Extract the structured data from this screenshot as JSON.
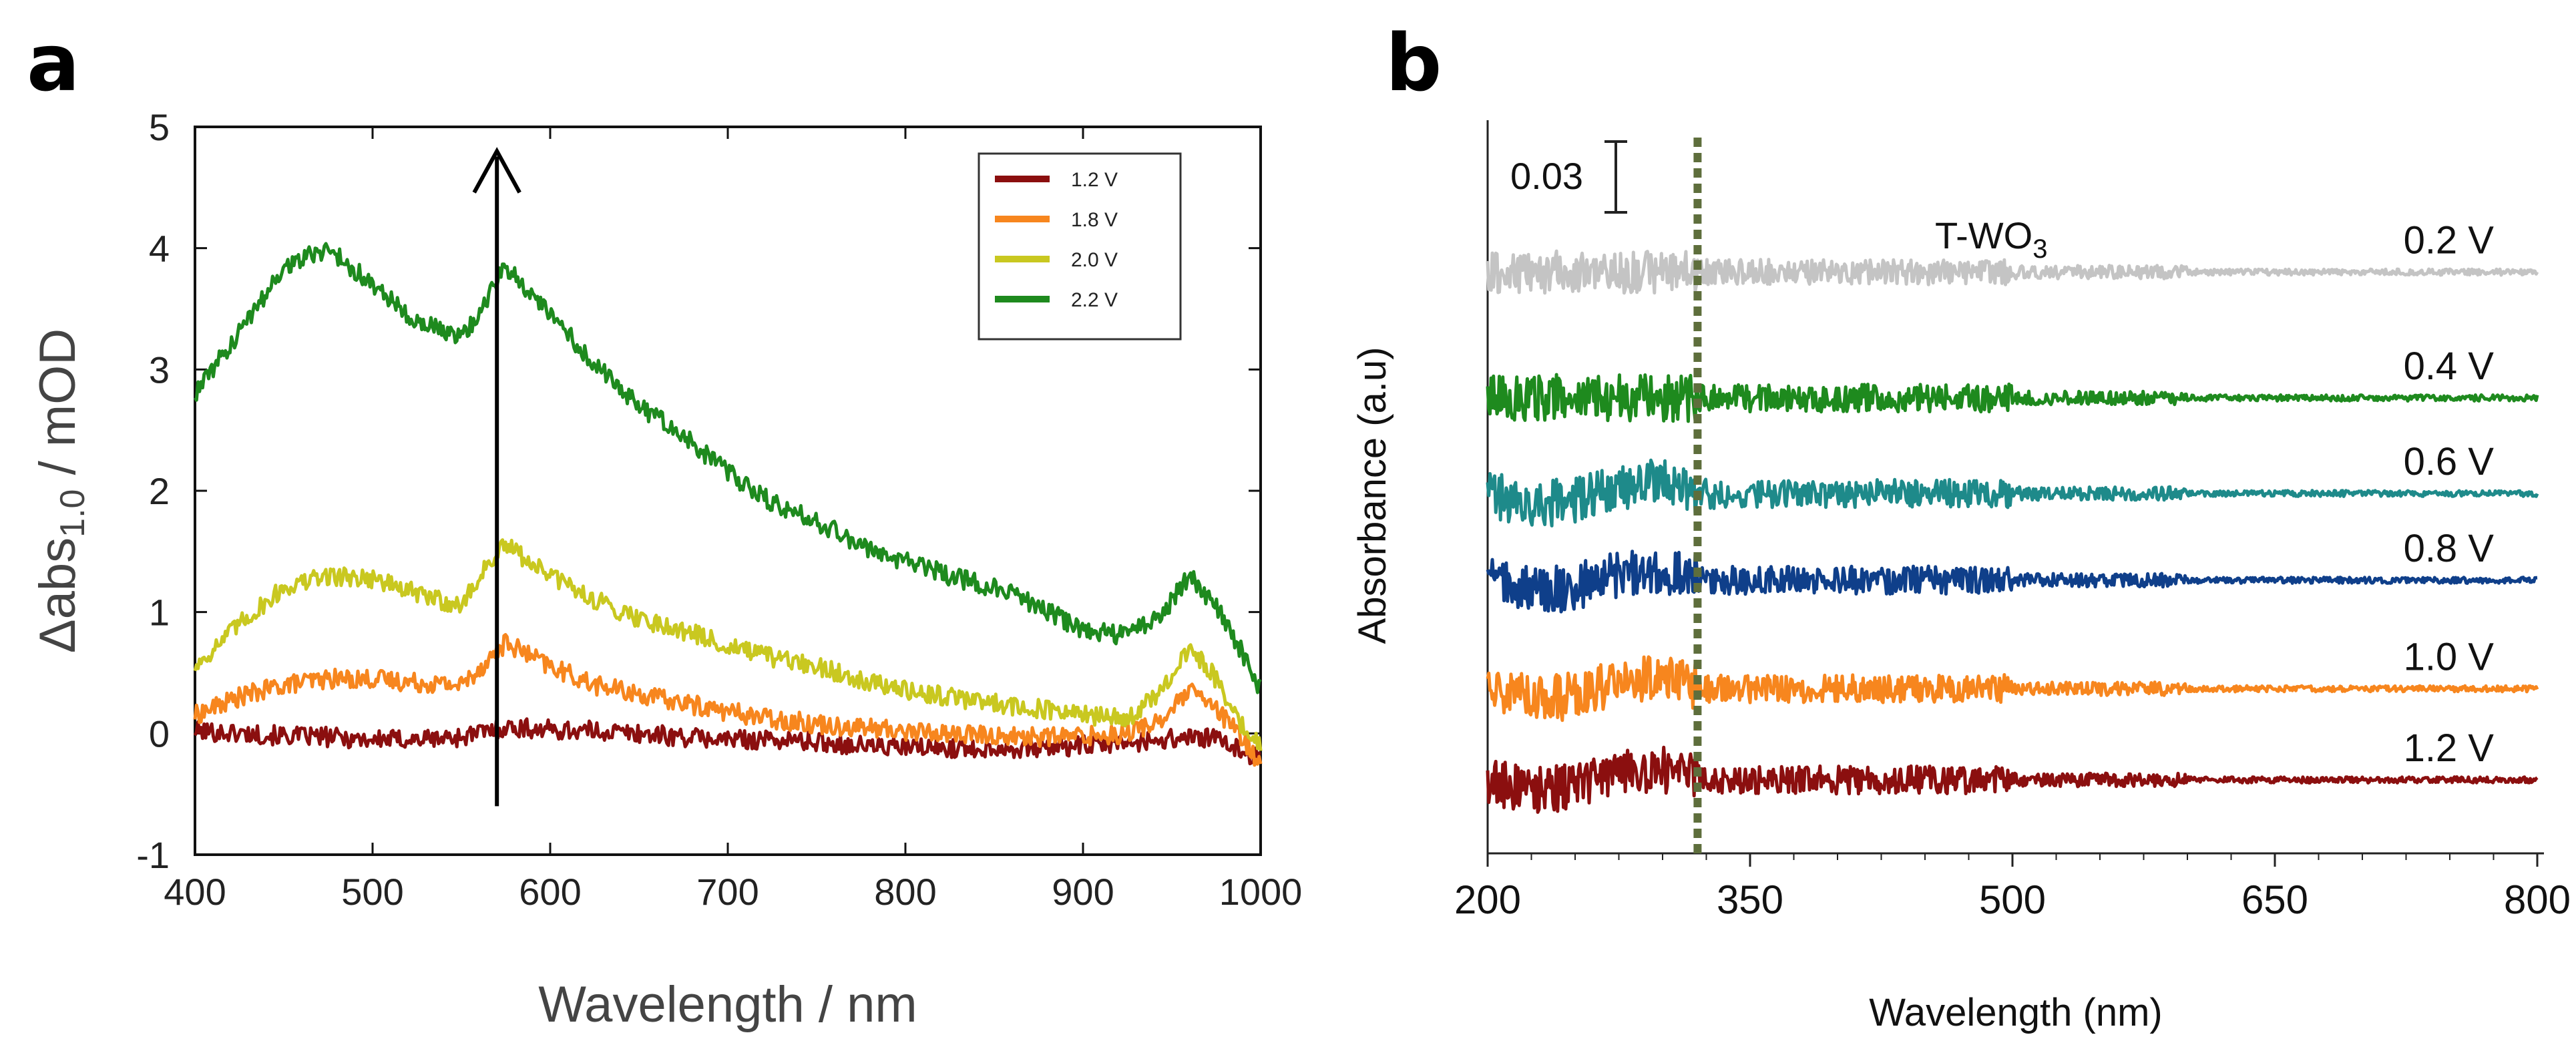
{
  "chart_data": [
    {
      "panel": "a",
      "type": "line",
      "xlabel": "Wavelength / nm",
      "ylabel_main": "Δabs",
      "ylabel_sub": "1.0",
      "ylabel_rest": " / mOD",
      "xlim": [
        400,
        1000
      ],
      "ylim": [
        -1,
        5
      ],
      "xticks": [
        "400",
        "500",
        "600",
        "700",
        "800",
        "900",
        "1000"
      ],
      "yticks": [
        "-1",
        "0",
        "1",
        "2",
        "3",
        "4",
        "5"
      ],
      "legend_position": "top-right",
      "arrow": {
        "x": 570,
        "y_from": -0.6,
        "y_to": 4.8
      },
      "x": [
        400,
        425,
        450,
        475,
        500,
        525,
        550,
        565,
        575,
        600,
        625,
        650,
        675,
        700,
        725,
        750,
        775,
        800,
        825,
        850,
        875,
        900,
        925,
        945,
        960,
        975,
        990,
        1000
      ],
      "series": [
        {
          "name": "1.2 V",
          "color": "#8b0f0f",
          "values": [
            0.02,
            0.0,
            -0.02,
            -0.03,
            -0.05,
            -0.05,
            -0.03,
            0.02,
            0.05,
            0.03,
            0.02,
            0.0,
            -0.03,
            -0.05,
            -0.05,
            -0.07,
            -0.1,
            -0.12,
            -0.12,
            -0.12,
            -0.12,
            -0.1,
            -0.08,
            -0.05,
            -0.03,
            -0.05,
            -0.15,
            -0.2
          ]
        },
        {
          "name": "1.8 V",
          "color": "#f7861e",
          "values": [
            0.15,
            0.3,
            0.4,
            0.45,
            0.45,
            0.42,
            0.4,
            0.6,
            0.75,
            0.55,
            0.4,
            0.32,
            0.25,
            0.18,
            0.12,
            0.08,
            0.05,
            0.02,
            0.0,
            -0.02,
            -0.03,
            -0.02,
            0.0,
            0.12,
            0.35,
            0.2,
            -0.05,
            -0.25
          ]
        },
        {
          "name": "2.0 V",
          "color": "#c9c820",
          "values": [
            0.55,
            0.9,
            1.2,
            1.3,
            1.28,
            1.15,
            1.05,
            1.4,
            1.55,
            1.3,
            1.1,
            0.95,
            0.85,
            0.72,
            0.62,
            0.55,
            0.45,
            0.35,
            0.3,
            0.25,
            0.2,
            0.15,
            0.12,
            0.35,
            0.7,
            0.45,
            0.05,
            -0.1
          ]
        },
        {
          "name": "2.2 V",
          "color": "#1e8a1e",
          "values": [
            2.8,
            3.3,
            3.85,
            4.0,
            3.7,
            3.4,
            3.25,
            3.6,
            3.85,
            3.45,
            3.05,
            2.7,
            2.45,
            2.15,
            1.9,
            1.75,
            1.55,
            1.42,
            1.3,
            1.2,
            1.05,
            0.85,
            0.8,
            1.0,
            1.3,
            1.05,
            0.65,
            0.35
          ]
        }
      ]
    },
    {
      "panel": "b",
      "type": "line",
      "xlabel": "Wavelength (nm)",
      "ylabel": "Absorbance (a.u)",
      "xlim": [
        200,
        800
      ],
      "xticks": [
        "200",
        "350",
        "500",
        "650",
        "800"
      ],
      "scale_bar_label": "0.03",
      "reference_line_x": 320,
      "annotation_main": "T-WO",
      "annotation_sub": "3",
      "series": [
        {
          "name": "0.2 V",
          "color": "#c4c4c4",
          "offset": 11.7
        },
        {
          "name": "0.4 V",
          "color": "#1e8a1e",
          "offset": 8.8
        },
        {
          "name": "0.6 V",
          "color": "#1e8a8a",
          "offset": 6.6
        },
        {
          "name": "0.8 V",
          "color": "#0f3f8a",
          "offset": 4.6
        },
        {
          "name": "1.0 V",
          "color": "#f7861e",
          "offset": 2.1
        },
        {
          "name": "1.2 V",
          "color": "#8b0f0f",
          "offset": 0.0
        }
      ]
    }
  ]
}
